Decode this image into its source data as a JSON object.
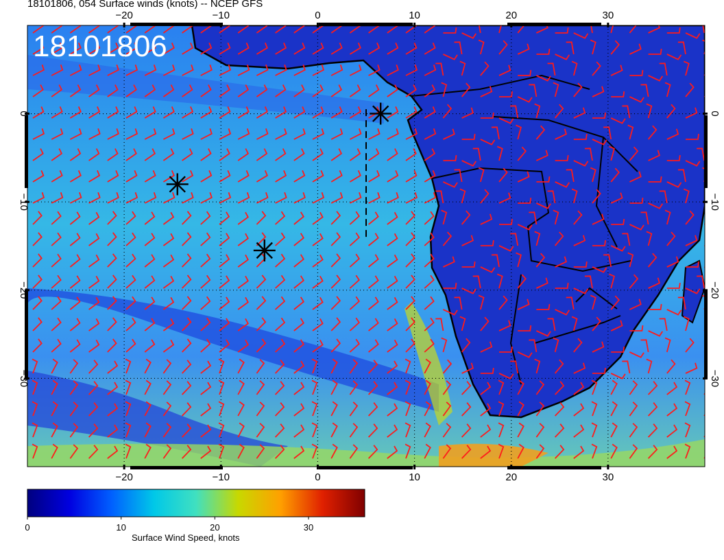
{
  "title": "18101806, 054 Surface winds (knots) -- NCEP GFS",
  "stamp": "18101806",
  "lon_ticks_top": [
    "−20",
    "−10",
    "0",
    "10",
    "20",
    "30"
  ],
  "lon_ticks_bottom": [
    "−20",
    "−10",
    "0",
    "10",
    "20",
    "30"
  ],
  "lon_values": [
    -20,
    -10,
    0,
    10,
    20,
    30
  ],
  "lat_ticks": [
    "0",
    "−10",
    "−20",
    "−30"
  ],
  "lat_values": [
    0,
    -10,
    -20,
    -30
  ],
  "extent": {
    "lon_min": -30,
    "lon_max": 40,
    "lat_min": -40,
    "lat_max": 10
  },
  "colorbar": {
    "label": "Surface Wind Speed, knots",
    "ticks": [
      "0",
      "10",
      "20",
      "30"
    ],
    "tick_values": [
      0,
      10,
      20,
      30
    ],
    "min": 0,
    "max": 36,
    "stops": [
      "#00007f",
      "#0000e0",
      "#0060ff",
      "#00c8e8",
      "#40e0c0",
      "#c8d800",
      "#ffa000",
      "#e02000",
      "#800000"
    ]
  },
  "markers": [
    {
      "name": "star",
      "lon": 6.5,
      "lat": 0
    },
    {
      "name": "star",
      "lon": -14.5,
      "lat": -8
    },
    {
      "name": "star",
      "lon": -5.5,
      "lat": -15.5
    }
  ],
  "track": {
    "lon": 5,
    "lat_start": 0.5,
    "lat_end": -14
  },
  "colors": {
    "ocean": "#3aa0f0",
    "ocean_calm": "#1e50e0",
    "land": "#1a33c8",
    "barb": "#ff1a1a",
    "coast": "#000000",
    "grid": "#000000"
  }
}
